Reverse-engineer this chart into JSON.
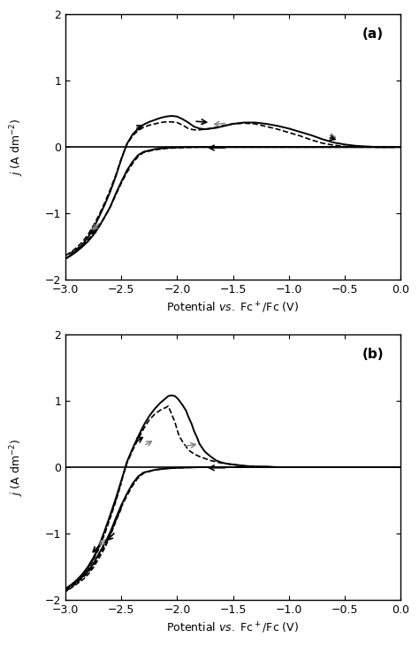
{
  "xlim": [
    -3.0,
    0.0
  ],
  "ylim": [
    -2.0,
    2.0
  ],
  "xlabel": "Potential vs. Fc⁺/Fc (V)",
  "ylabel": "j (A dm⁻²)",
  "panel_a_label": "(a)",
  "panel_b_label": "(b)",
  "xticks": [
    -3.0,
    -2.5,
    -2.0,
    -1.5,
    -1.0,
    -0.5,
    0.0
  ],
  "yticks": [
    -2,
    -1,
    0,
    1,
    2
  ],
  "background_color": "#ffffff",
  "line_color": "#000000"
}
